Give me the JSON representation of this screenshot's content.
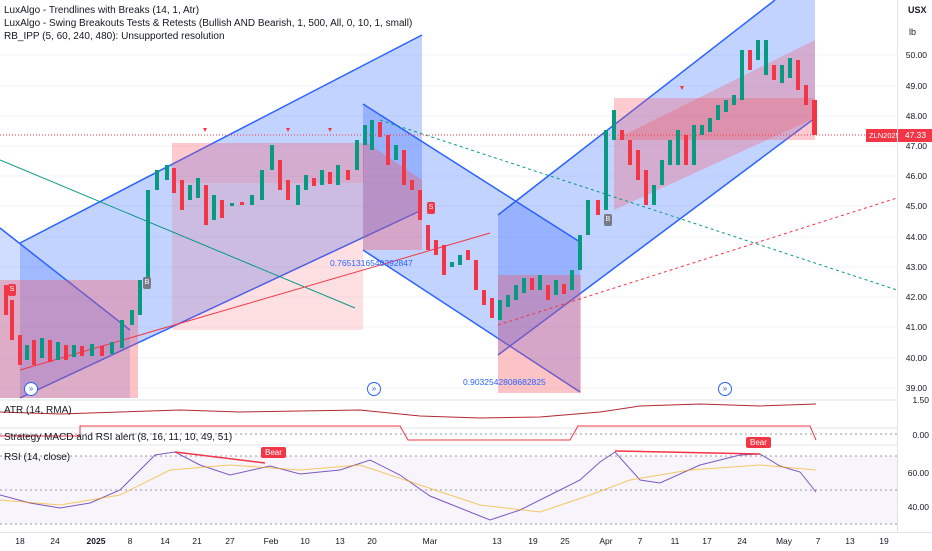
{
  "legend": {
    "line1": "LuxAlgo - Trendlines with Breaks (14, 1, Atr)",
    "line2": "LuxAlgo - Swing Breakouts Tests & Retests (Bullish AND Bearish, 1, 500, All, 0, 10, 1, small)",
    "line3": "RB_IPP (5, 60, 240, 480): Unsupported resolution"
  },
  "axis": {
    "currency": "USX",
    "unit": "lb",
    "price_ticks": [
      "50.00",
      "49.00",
      "48.00",
      "47.00",
      "46.00",
      "45.00",
      "44.00",
      "43.00",
      "42.00",
      "41.00",
      "40.00",
      "39.00"
    ],
    "current_price": "47.33",
    "symbol": "ZLN2025",
    "atr_ticks": [
      "1.50"
    ],
    "macd_ticks": [
      "0.00"
    ],
    "rsi_ticks": [
      "60.00",
      "40.00"
    ]
  },
  "time_axis": [
    {
      "label": "18",
      "bold": false
    },
    {
      "label": "24",
      "bold": false
    },
    {
      "label": "2025",
      "bold": true
    },
    {
      "label": "8",
      "bold": false
    },
    {
      "label": "14",
      "bold": false
    },
    {
      "label": "21",
      "bold": false
    },
    {
      "label": "27",
      "bold": false
    },
    {
      "label": "Feb",
      "bold": false
    },
    {
      "label": "10",
      "bold": false
    },
    {
      "label": "13",
      "bold": false
    },
    {
      "label": "20",
      "bold": false
    },
    {
      "label": "Mar",
      "bold": false
    },
    {
      "label": "13",
      "bold": false
    },
    {
      "label": "19",
      "bold": false
    },
    {
      "label": "25",
      "bold": false
    },
    {
      "label": "Apr",
      "bold": false
    },
    {
      "label": "7",
      "bold": false
    },
    {
      "label": "11",
      "bold": false
    },
    {
      "label": "17",
      "bold": false
    },
    {
      "label": "24",
      "bold": false
    },
    {
      "label": "May",
      "bold": false
    },
    {
      "label": "7",
      "bold": false
    },
    {
      "label": "13",
      "bold": false
    },
    {
      "label": "19",
      "bold": false
    }
  ],
  "panes": {
    "atr": "ATR (14, RMA)",
    "macd": "Strategy MACD and RSI alert (8, 16, 11, 10, 49, 51)",
    "rsi": "RSI (14, close)"
  },
  "annotations": {
    "ratio1": "0.7651316540392847",
    "ratio2": "0.9032542808682825",
    "bear1": "Bear",
    "bear2": "Bear",
    "b_label": "B",
    "s_label": "S"
  },
  "colors": {
    "up": "#089981",
    "down": "#f23645",
    "channel_blue": "#2962ff",
    "zone_red": "#f7525f",
    "bg": "#ffffff"
  }
}
